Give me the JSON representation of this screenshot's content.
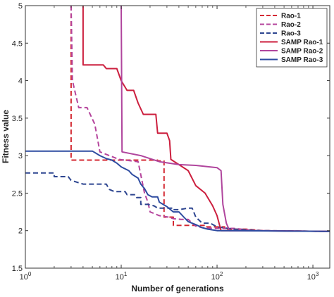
{
  "chart_data": {
    "type": "line",
    "xlabel": "Number of generations",
    "ylabel": "Fitness value",
    "xscale": "log",
    "xlim": [
      1,
      1500
    ],
    "ylim": [
      1.5,
      5
    ],
    "xticks": [
      {
        "value": 1,
        "base": "10",
        "exp": "0"
      },
      {
        "value": 10,
        "base": "10",
        "exp": "1"
      },
      {
        "value": 100,
        "base": "10",
        "exp": "2"
      },
      {
        "value": 1000,
        "base": "10",
        "exp": "3"
      }
    ],
    "yticks": [
      {
        "value": 1.5,
        "label": "1.5"
      },
      {
        "value": 2,
        "label": "2"
      },
      {
        "value": 2.5,
        "label": "2.5"
      },
      {
        "value": 3,
        "label": "3"
      },
      {
        "value": 3.5,
        "label": "3.5"
      },
      {
        "value": 4,
        "label": "4"
      },
      {
        "value": 4.5,
        "label": "4.5"
      },
      {
        "value": 5,
        "label": "5"
      }
    ],
    "legend_position": "top-right",
    "series": [
      {
        "name": "Rao-1",
        "color": "#d42a33",
        "dash": "dashed",
        "points": [
          [
            3,
            5.0
          ],
          [
            3,
            2.94
          ],
          [
            24,
            2.94
          ],
          [
            24,
            2.93
          ],
          [
            28,
            2.93
          ],
          [
            28,
            2.18
          ],
          [
            35,
            2.18
          ],
          [
            35,
            2.07
          ],
          [
            75,
            2.07
          ],
          [
            75,
            2.05
          ],
          [
            120,
            2.05
          ],
          [
            120,
            2.02
          ],
          [
            200,
            2.02
          ],
          [
            300,
            2.0
          ],
          [
            1500,
            1.99
          ]
        ]
      },
      {
        "name": "Rao-2",
        "color": "#b5449c",
        "dash": "dashed",
        "points": [
          [
            3,
            5.0
          ],
          [
            3.1,
            4.0
          ],
          [
            3.6,
            3.64
          ],
          [
            4.4,
            3.64
          ],
          [
            5.3,
            3.42
          ],
          [
            6,
            3.05
          ],
          [
            9.5,
            2.95
          ],
          [
            15,
            2.92
          ],
          [
            17.5,
            2.5
          ],
          [
            19,
            2.38
          ],
          [
            20,
            2.25
          ],
          [
            25,
            2.2
          ],
          [
            31,
            2.18
          ],
          [
            35,
            2.16
          ],
          [
            42,
            2.15
          ],
          [
            50,
            2.15
          ],
          [
            55,
            2.1
          ],
          [
            60,
            2.06
          ],
          [
            70,
            2.04
          ],
          [
            90,
            2.03
          ],
          [
            150,
            2.03
          ],
          [
            250,
            2.0
          ],
          [
            1500,
            1.99
          ]
        ]
      },
      {
        "name": "Rao-3",
        "color": "#2d4590",
        "dash": "dashed",
        "points": [
          [
            1,
            2.77
          ],
          [
            2,
            2.77
          ],
          [
            2,
            2.72
          ],
          [
            2.8,
            2.72
          ],
          [
            3,
            2.67
          ],
          [
            4,
            2.62
          ],
          [
            7,
            2.62
          ],
          [
            7.5,
            2.55
          ],
          [
            8.5,
            2.52
          ],
          [
            11,
            2.52
          ],
          [
            11.5,
            2.48
          ],
          [
            14,
            2.48
          ],
          [
            14.5,
            2.44
          ],
          [
            16,
            2.44
          ],
          [
            16,
            2.35
          ],
          [
            19,
            2.35
          ],
          [
            22,
            2.33
          ],
          [
            24,
            2.3
          ],
          [
            30,
            2.3
          ],
          [
            35,
            2.3
          ],
          [
            35,
            2.28
          ],
          [
            40,
            2.28
          ],
          [
            50,
            2.3
          ],
          [
            55,
            2.3
          ],
          [
            60,
            2.18
          ],
          [
            70,
            2.1
          ],
          [
            85,
            2.1
          ],
          [
            100,
            2.05
          ],
          [
            150,
            2.02
          ],
          [
            300,
            2.0
          ],
          [
            1500,
            1.99
          ]
        ]
      },
      {
        "name": "SAMP Rao-1",
        "color": "#cc1f3e",
        "dash": "solid",
        "points": [
          [
            4,
            5.0
          ],
          [
            4,
            4.21
          ],
          [
            6.5,
            4.21
          ],
          [
            7,
            4.16
          ],
          [
            9,
            4.16
          ],
          [
            10,
            4.0
          ],
          [
            11.5,
            3.87
          ],
          [
            13.5,
            3.87
          ],
          [
            15,
            3.7
          ],
          [
            17,
            3.55
          ],
          [
            23,
            3.55
          ],
          [
            24,
            3.3
          ],
          [
            30,
            3.3
          ],
          [
            32,
            3.2
          ],
          [
            33,
            2.95
          ],
          [
            50,
            2.8
          ],
          [
            60,
            2.6
          ],
          [
            75,
            2.5
          ],
          [
            90,
            2.33
          ],
          [
            100,
            2.2
          ],
          [
            110,
            2.0
          ],
          [
            130,
            2.0
          ],
          [
            200,
            2.0
          ],
          [
            1500,
            1.99
          ]
        ]
      },
      {
        "name": "SAMP Rao-2",
        "color": "#b0459d",
        "dash": "solid",
        "points": [
          [
            10,
            5.0
          ],
          [
            10.2,
            3.05
          ],
          [
            16,
            3.0
          ],
          [
            25,
            2.92
          ],
          [
            40,
            2.88
          ],
          [
            60,
            2.87
          ],
          [
            100,
            2.84
          ],
          [
            110,
            2.8
          ],
          [
            115,
            2.35
          ],
          [
            125,
            2.1
          ],
          [
            135,
            2.0
          ],
          [
            200,
            2.0
          ],
          [
            1500,
            1.99
          ]
        ]
      },
      {
        "name": "SAMP Rao-3",
        "color": "#2d4ba0",
        "dash": "solid",
        "points": [
          [
            1,
            3.06
          ],
          [
            2,
            3.06
          ],
          [
            5,
            3.06
          ],
          [
            6,
            3.0
          ],
          [
            7,
            2.96
          ],
          [
            8,
            2.94
          ],
          [
            9,
            2.9
          ],
          [
            10,
            2.85
          ],
          [
            12,
            2.8
          ],
          [
            13,
            2.75
          ],
          [
            15,
            2.7
          ],
          [
            16,
            2.62
          ],
          [
            17.5,
            2.56
          ],
          [
            19,
            2.48
          ],
          [
            21,
            2.45
          ],
          [
            24,
            2.45
          ],
          [
            25,
            2.38
          ],
          [
            30,
            2.32
          ],
          [
            35,
            2.25
          ],
          [
            40,
            2.25
          ],
          [
            45,
            2.18
          ],
          [
            50,
            2.12
          ],
          [
            60,
            2.08
          ],
          [
            70,
            2.04
          ],
          [
            80,
            2.02
          ],
          [
            100,
            2.0
          ],
          [
            150,
            2.0
          ],
          [
            1500,
            1.99
          ]
        ]
      }
    ]
  }
}
